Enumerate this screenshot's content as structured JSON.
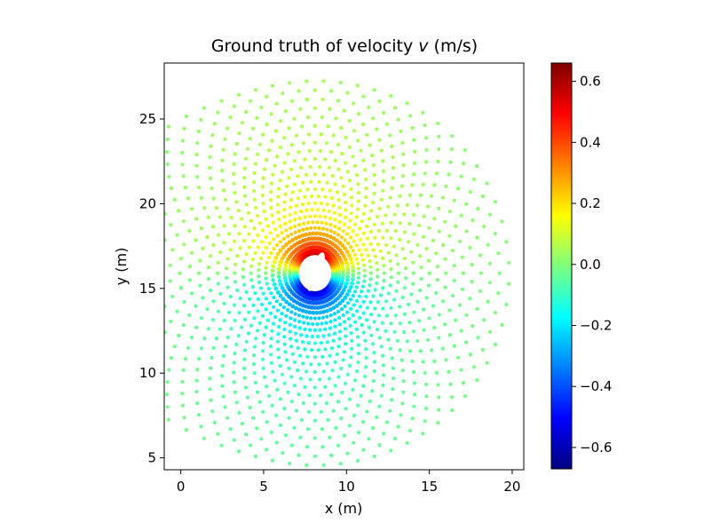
{
  "chart_data": {
    "type": "scatter",
    "title_prefix": "Ground truth of velocity",
    "title_var": "v",
    "title_suffix": "(m/s)",
    "xlabel": "x (m)",
    "ylabel": "y (m)",
    "xlim": [
      -1,
      20.7
    ],
    "ylim": [
      4.3,
      28.3
    ],
    "xticks": [
      0,
      5,
      10,
      15,
      20
    ],
    "yticks": [
      5,
      10,
      15,
      20,
      25
    ],
    "colorbar": {
      "colormap": "jet",
      "vmin": -0.67,
      "vmax": 0.66,
      "ticks": [
        -0.6,
        -0.4,
        -0.2,
        0.0,
        0.2,
        0.4,
        0.6
      ],
      "tick_labels": [
        "−0.6",
        "−0.4",
        "−0.2",
        "0.0",
        "0.2",
        "0.4",
        "0.6"
      ]
    },
    "obstacle": {
      "shape": "ellipse",
      "center": [
        8.1,
        15.9
      ],
      "semi_axes": [
        0.35,
        1.15
      ],
      "tilt_deg": 20
    },
    "field": {
      "description_of_points": "scattered velocity samples on a polar mesh around the obstacle",
      "center": [
        8.1,
        15.9
      ],
      "inner_radius": 1.1,
      "outer_radius_upstream": 10.5,
      "outer_radius_downstream": 11.7,
      "v_extremes": {
        "upper_max": 0.66,
        "lower_min": -0.67
      }
    }
  }
}
